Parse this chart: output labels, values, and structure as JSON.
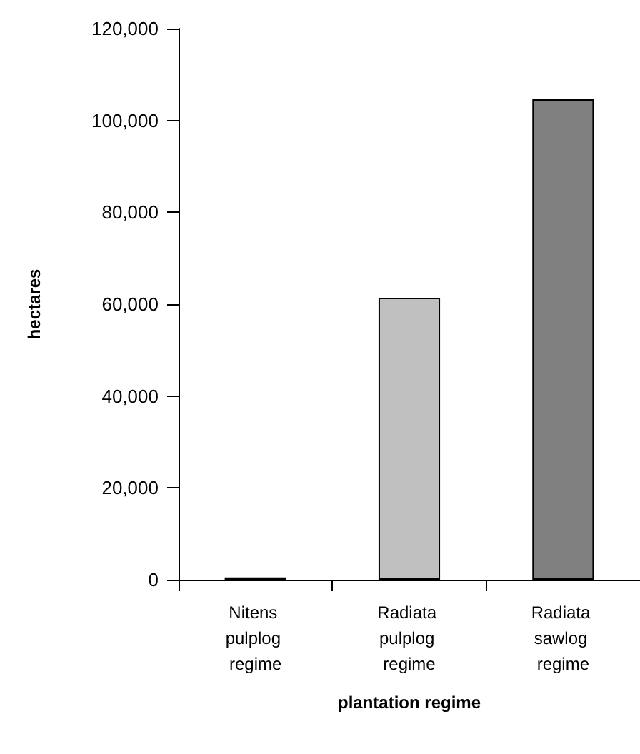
{
  "chart_data": {
    "type": "bar",
    "xlabel": "plantation regime",
    "ylabel": "hectares",
    "categories": [
      "Nitens pulplog regime",
      "Radiata pulplog regime",
      "Radiata sawlog regime"
    ],
    "values": [
      500,
      61400,
      104600
    ],
    "colors": [
      "#000000",
      "#c0c0c0",
      "#808080"
    ],
    "ylim": [
      0,
      120000
    ],
    "yticks": [
      0,
      {
        "value": 20000,
        "label": "20,000"
      },
      {
        "value": 40000,
        "label": "40,000"
      },
      {
        "value": 60000,
        "label": "60,000"
      },
      {
        "value": 80000,
        "label": "80,000"
      },
      {
        "value": 100000,
        "label": "100,000"
      },
      {
        "value": 120000,
        "label": "120,000"
      }
    ],
    "grid": false
  }
}
